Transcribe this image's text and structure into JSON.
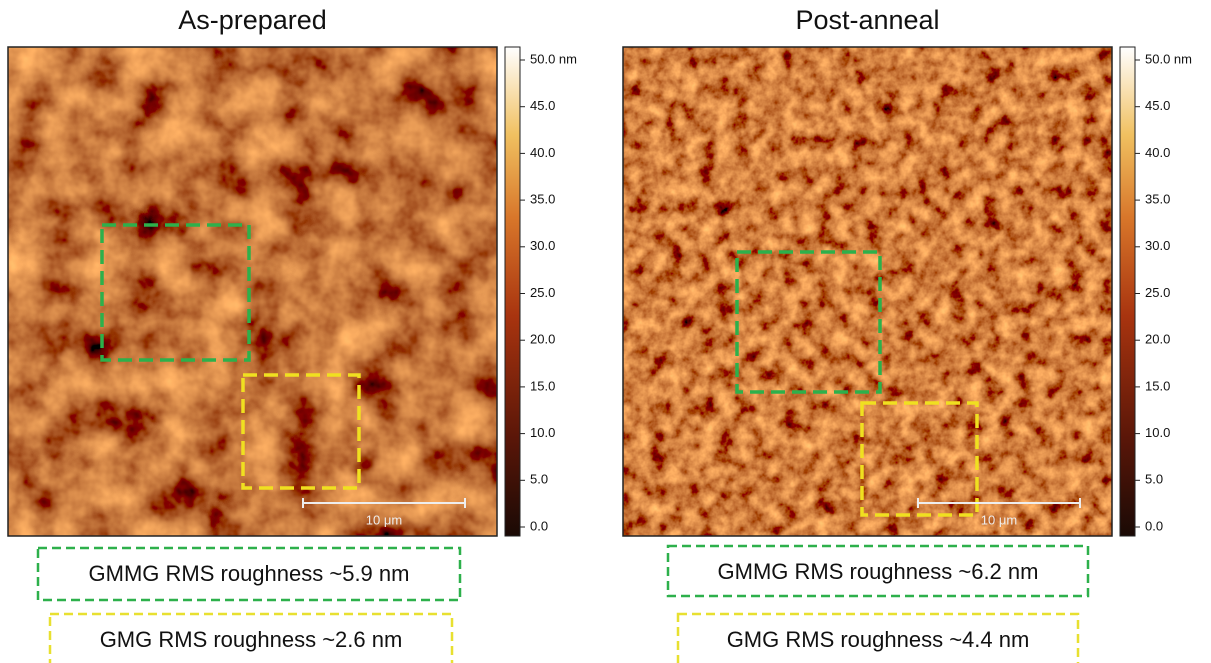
{
  "panels": [
    {
      "title": "As-prepared",
      "scale_bar": "10 μm",
      "colorbar_ticks": [
        {
          "value": 50,
          "label": "50.0 nm"
        },
        {
          "value": 45,
          "label": "45.0"
        },
        {
          "value": 40,
          "label": "40.0"
        },
        {
          "value": 35,
          "label": "35.0"
        },
        {
          "value": 30,
          "label": "30.0"
        },
        {
          "value": 25,
          "label": "25.0"
        },
        {
          "value": 20,
          "label": "20.0"
        },
        {
          "value": 15,
          "label": "15.0"
        },
        {
          "value": 10,
          "label": "10.0"
        },
        {
          "value": 5,
          "label": "5.0"
        },
        {
          "value": 0,
          "label": "0.0"
        }
      ],
      "annotations": [
        "GMMG RMS roughness ~5.9 nm",
        "GMG RMS roughness ~2.6 nm"
      ]
    },
    {
      "title": "Post-anneal",
      "scale_bar": "10 μm",
      "colorbar_ticks": [
        {
          "value": 50,
          "label": "50.0 nm"
        },
        {
          "value": 45,
          "label": "45.0"
        },
        {
          "value": 40,
          "label": "40.0"
        },
        {
          "value": 35,
          "label": "35.0"
        },
        {
          "value": 30,
          "label": "30.0"
        },
        {
          "value": 25,
          "label": "25.0"
        },
        {
          "value": 20,
          "label": "20.0"
        },
        {
          "value": 15,
          "label": "15.0"
        },
        {
          "value": 10,
          "label": "10.0"
        },
        {
          "value": 5,
          "label": "5.0"
        },
        {
          "value": 0,
          "label": "0.0"
        }
      ],
      "annotations": [
        "GMMG RMS roughness ~6.2 nm",
        "GMG RMS roughness ~4.4 nm"
      ]
    }
  ]
}
